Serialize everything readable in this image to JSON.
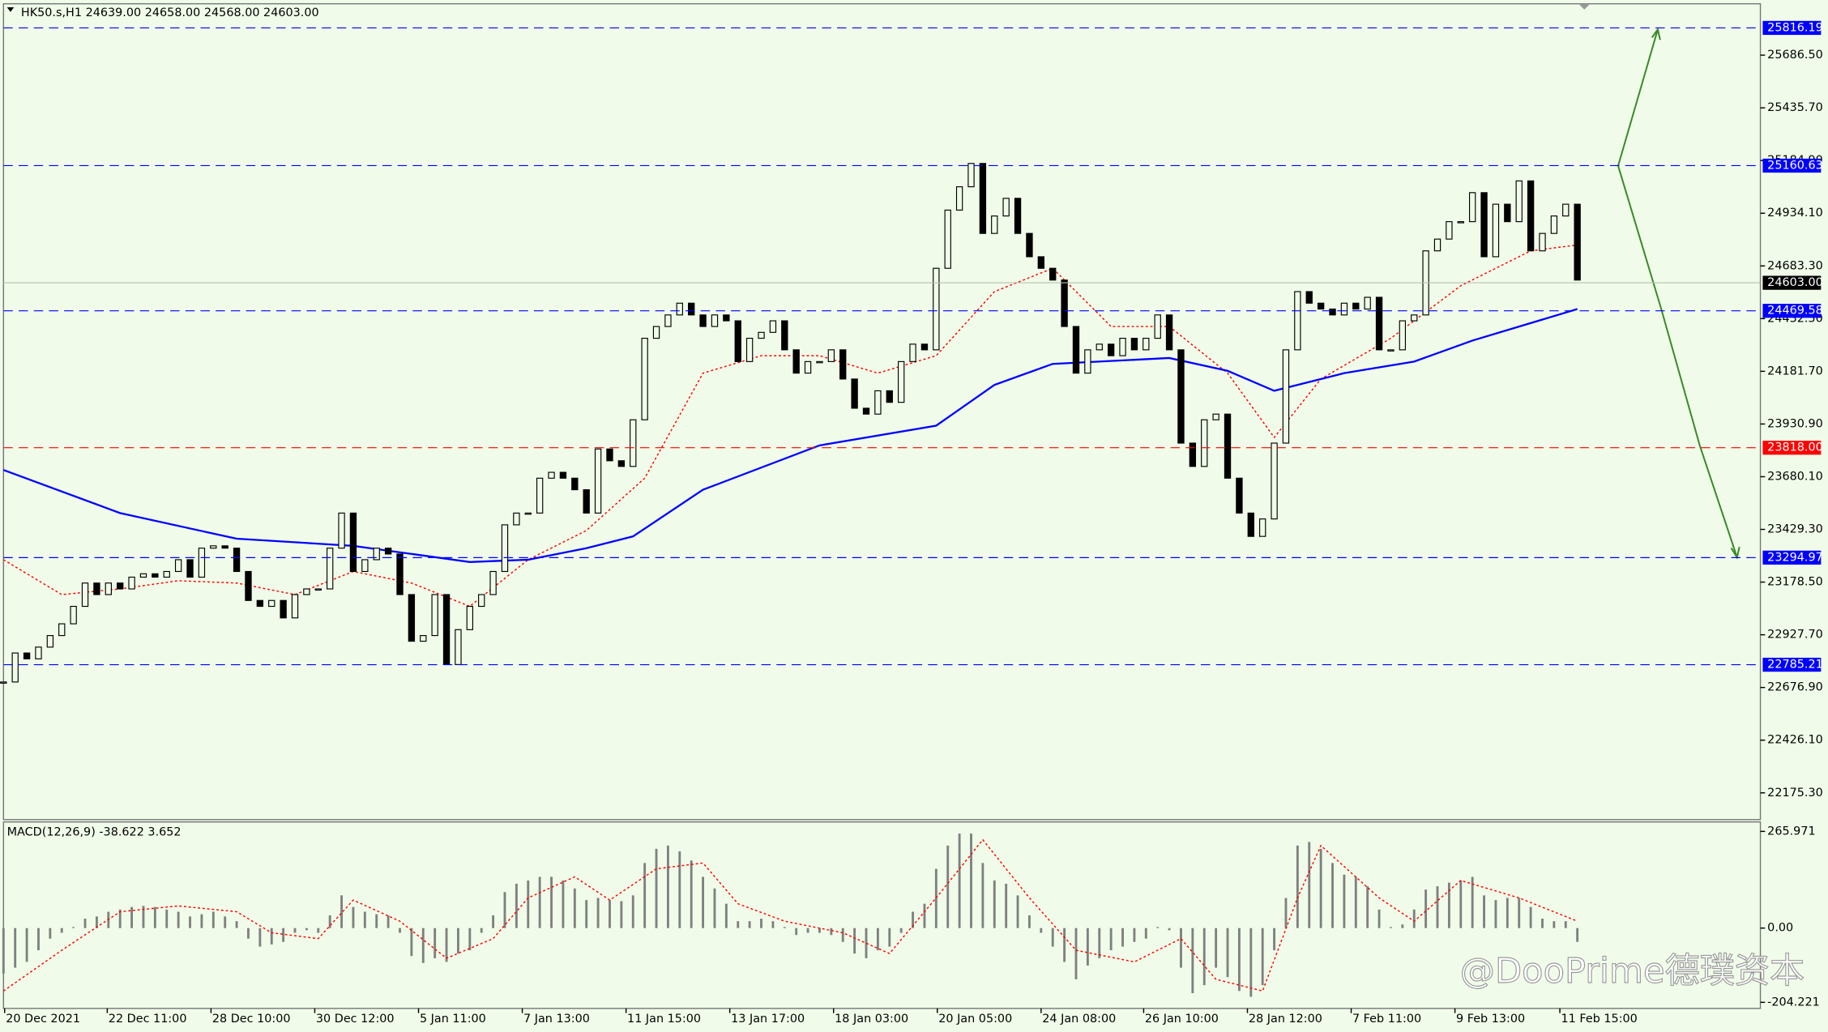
{
  "chart_data": [
    {
      "type": "candlestick",
      "title": "HK50.s,H1  24639.00 24658.00 24568.00 24603.00",
      "xlim": [
        -0.3,
        150.7
      ],
      "xticks": [
        {
          "value": 0.1,
          "label": "20 Dec 2021"
        },
        {
          "value": 8.9,
          "label": "22 Dec 11:00"
        },
        {
          "value": 17.8,
          "label": "28 Dec 10:00"
        },
        {
          "value": 26.7,
          "label": "30 Dec 12:00"
        },
        {
          "value": 35.6,
          "label": "5 Jan 11:00"
        },
        {
          "value": 44.5,
          "label": "7 Jan 13:00"
        },
        {
          "value": 53.4,
          "label": "11 Jan 15:00"
        },
        {
          "value": 62.3,
          "label": "13 Jan 17:00"
        },
        {
          "value": 71.2,
          "label": "18 Jan 03:00"
        },
        {
          "value": 80.1,
          "label": "20 Jan 05:00"
        },
        {
          "value": 89,
          "label": "24 Jan 08:00"
        },
        {
          "value": 97.8,
          "label": "26 Jan 10:00"
        },
        {
          "value": 106.7,
          "label": "28 Jan 12:00"
        },
        {
          "value": 115.6,
          "label": "7 Feb 11:00"
        },
        {
          "value": 124.5,
          "label": "9 Feb 13:00"
        },
        {
          "value": 133.5,
          "label": "11 Feb 15:00"
        }
      ],
      "ylim": [
        22048,
        25931
      ],
      "yticks": [
        {
          "value": 25686.5,
          "label": "25686.50"
        },
        {
          "value": 25435.7,
          "label": "25435.70"
        },
        {
          "value": 25184.9,
          "label": "25184.90"
        },
        {
          "value": 24934.1,
          "label": "24934.10"
        },
        {
          "value": 24683.3,
          "label": "24683.30"
        },
        {
          "value": 24432.5,
          "label": "24432.50"
        },
        {
          "value": 24181.7,
          "label": "24181.70"
        },
        {
          "value": 23930.9,
          "label": "23930.90"
        },
        {
          "value": 23680.1,
          "label": "23680.10"
        },
        {
          "value": 23429.3,
          "label": "23429.30"
        },
        {
          "value": 23178.5,
          "label": "23178.50"
        },
        {
          "value": 22927.7,
          "label": "22927.70"
        },
        {
          "value": 22676.9,
          "label": "22676.90"
        },
        {
          "value": 22426.1,
          "label": "22426.10"
        },
        {
          "value": 22175.3,
          "label": "22175.30"
        }
      ],
      "color": "#000000",
      "close": [
        22703,
        22841,
        22813,
        22869,
        22924,
        22980,
        23063,
        23174,
        23119,
        23174,
        23146,
        23202,
        23218,
        23202,
        23229,
        23285,
        23202,
        23340,
        23351,
        23340,
        23229,
        23091,
        23063,
        23091,
        23008,
        23119,
        23146,
        23146,
        23340,
        23507,
        23229,
        23285,
        23340,
        23312,
        23119,
        22897,
        22924,
        23119,
        22786,
        22952,
        23063,
        23119,
        23229,
        23451,
        23507,
        23507,
        23673,
        23701,
        23673,
        23618,
        23507,
        23812,
        23756,
        23729,
        23951,
        24339,
        24395,
        24450,
        24506,
        24450,
        24395,
        24450,
        24422,
        24228,
        24339,
        24367,
        24422,
        24284,
        24173,
        24228,
        24228,
        24284,
        24145,
        24006,
        23978,
        24089,
        24034,
        24228,
        24311,
        24284,
        24672,
        24949,
        25060,
        25171,
        24838,
        24921,
        25005,
        24838,
        24727,
        24672,
        24616,
        24395,
        24173,
        24284,
        24311,
        24256,
        24339,
        24284,
        24339,
        24450,
        24284,
        23840,
        23729,
        23951,
        23978,
        23673,
        23507,
        23396,
        23479,
        23840,
        24284,
        24561,
        24506,
        24478,
        24450,
        24506,
        24478,
        24534,
        24284,
        24284,
        24422,
        24450,
        24755,
        24811,
        24894,
        24894,
        25032,
        24727,
        24977,
        24894,
        25088,
        24755,
        24838,
        24921,
        24977,
        24616
      ],
      "moving_averages": [
        {
          "color": "#ff0000",
          "dash": true,
          "x": [
            0,
            5,
            10,
            15,
            20,
            25,
            30,
            35,
            40,
            45,
            50,
            55,
            60,
            65,
            70,
            75,
            80,
            85,
            90,
            95,
            100,
            105,
            109,
            113,
            119,
            125,
            131,
            135
          ],
          "values": [
            23285,
            23119,
            23146,
            23185,
            23174,
            23119,
            23229,
            23174,
            23063,
            23285,
            23424,
            23673,
            24173,
            24256,
            24256,
            24173,
            24256,
            24561,
            24672,
            24395,
            24395,
            24173,
            23867,
            24145,
            24339,
            24589,
            24755,
            24783
          ]
        },
        {
          "color": "#0000ff",
          "dash": false,
          "x": [
            0,
            10,
            20,
            30,
            40,
            45,
            50,
            54,
            60,
            70,
            80,
            85,
            90,
            100,
            105,
            109,
            115,
            121,
            126,
            135
          ],
          "values": [
            23712,
            23507,
            23385,
            23351,
            23274,
            23285,
            23340,
            23396,
            23618,
            23829,
            23923,
            24117,
            24217,
            24245,
            24184,
            24089,
            24173,
            24228,
            24328,
            24478
          ]
        }
      ],
      "levels": [
        {
          "value": 25816.19,
          "label": "25816.19",
          "color": "#0000ff"
        },
        {
          "value": 25160.63,
          "label": "25160.63",
          "color": "#0000ff"
        },
        {
          "value": 24469.58,
          "label": "24469.58",
          "color": "#0000ff"
        },
        {
          "value": 23818,
          "label": "23818.00",
          "color": "#ff0000"
        },
        {
          "value": 23294.97,
          "label": "23294.97",
          "color": "#0000ff"
        },
        {
          "value": 22785.21,
          "label": "22785.21",
          "color": "#0000ff"
        }
      ],
      "last_price": {
        "value": 24603,
        "label": "24603.00",
        "color": "#000000"
      }
    },
    {
      "type": "bar",
      "title": "MACD(12,26,9) -38.622 3.652",
      "ylim": [
        -221,
        292
      ],
      "yticks": [
        {
          "value": 265.971,
          "label": "265.971"
        },
        {
          "value": 0,
          "label": "0.00"
        },
        {
          "value": -204.221,
          "label": "-204.221"
        }
      ],
      "color": "#808080",
      "values": [
        -125,
        -109,
        -93,
        -61,
        -29,
        -13,
        3,
        26,
        32,
        45,
        51,
        58,
        61,
        58,
        51,
        45,
        32,
        38,
        45,
        32,
        19,
        -29,
        -51,
        -45,
        -38,
        -13,
        -6,
        -13,
        35,
        90,
        58,
        45,
        38,
        35,
        -13,
        -77,
        -96,
        -83,
        -93,
        -70,
        -61,
        -13,
        35,
        99,
        122,
        131,
        141,
        141,
        131,
        109,
        77,
        83,
        77,
        74,
        90,
        179,
        218,
        227,
        211,
        186,
        141,
        109,
        67,
        19,
        19,
        26,
        19,
        3,
        -19,
        -13,
        -13,
        -19,
        -38,
        -70,
        -83,
        -61,
        -51,
        -13,
        45,
        67,
        163,
        227,
        260,
        260,
        179,
        131,
        122,
        90,
        35,
        -13,
        -51,
        -93,
        -141,
        -103,
        -83,
        -61,
        -51,
        -38,
        -29,
        3,
        -6,
        -109,
        -179,
        -157,
        -109,
        -135,
        -173,
        -189,
        -157,
        -61,
        83,
        227,
        237,
        218,
        179,
        147,
        141,
        115,
        51,
        3,
        10,
        51,
        106,
        115,
        125,
        131,
        141,
        90,
        77,
        83,
        83,
        58,
        26,
        19,
        19,
        -38
      ],
      "signal": {
        "color": "#ff0000",
        "x": [
          0,
          5,
          10,
          15,
          20,
          23,
          27,
          30,
          34,
          38,
          42,
          45,
          49,
          52,
          56,
          60,
          63,
          67,
          72,
          76,
          80,
          84,
          88,
          92,
          97,
          101,
          104,
          108,
          111,
          113,
          118,
          121,
          125,
          130,
          135
        ],
        "values": [
          -173,
          -61,
          45,
          61,
          45,
          -13,
          -29,
          77,
          19,
          -83,
          -29,
          83,
          141,
          77,
          163,
          179,
          67,
          19,
          -13,
          -70,
          83,
          243,
          83,
          -61,
          -93,
          -29,
          -141,
          -173,
          83,
          227,
          83,
          19,
          131,
          83,
          19
        ]
      }
    }
  ],
  "watermark": "@DooPrime德璞资本"
}
